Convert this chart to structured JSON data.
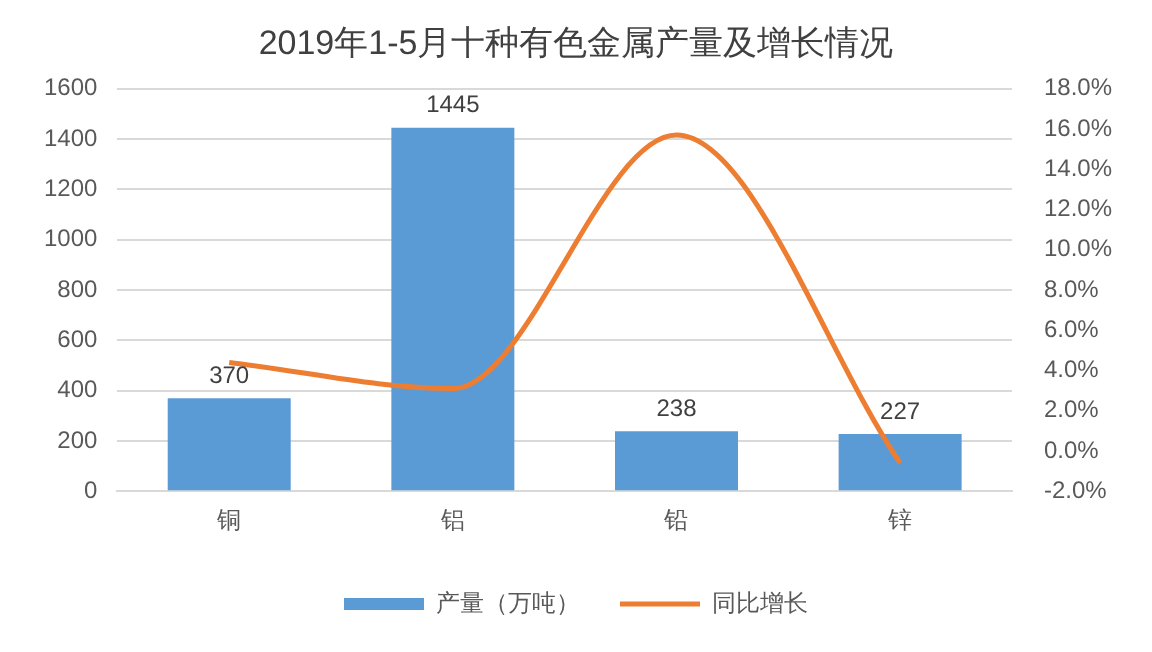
{
  "chart_data": {
    "type": "bar",
    "title": "2019年1-5月十种有色金属产量及增长情况",
    "categories": [
      "铜",
      "铝",
      "铅",
      "锌"
    ],
    "series": [
      {
        "name": "产量（万吨）",
        "color": "#5b9bd5",
        "values": [
          370,
          1445,
          238,
          227
        ],
        "value_labels": [
          "370",
          "1445",
          "238",
          "227"
        ]
      },
      {
        "name": "同比增长",
        "type": "line",
        "axis": "y2",
        "color": "#ed7d31",
        "values": [
          4.4,
          3.1,
          15.7,
          -0.6
        ],
        "marker": "none"
      }
    ],
    "ylim": [
      0,
      1600
    ],
    "yticks": [
      0,
      200,
      400,
      600,
      800,
      1000,
      1200,
      1400,
      1600
    ],
    "y2lim": [
      -2,
      18
    ],
    "y2ticks": [
      {
        "value": -2,
        "label": "-2.0%"
      },
      {
        "value": 0,
        "label": "0.0%"
      },
      {
        "value": 2,
        "label": "2.0%"
      },
      {
        "value": 4,
        "label": "4.0%"
      },
      {
        "value": 6,
        "label": "6.0%"
      },
      {
        "value": 8,
        "label": "8.0%"
      },
      {
        "value": 10,
        "label": "10.0%"
      },
      {
        "value": 12,
        "label": "12.0%"
      },
      {
        "value": 14,
        "label": "14.0%"
      },
      {
        "value": 16,
        "label": "16.0%"
      },
      {
        "value": 18,
        "label": "18.0%"
      }
    ],
    "grid": "y",
    "legend": "bottom"
  }
}
